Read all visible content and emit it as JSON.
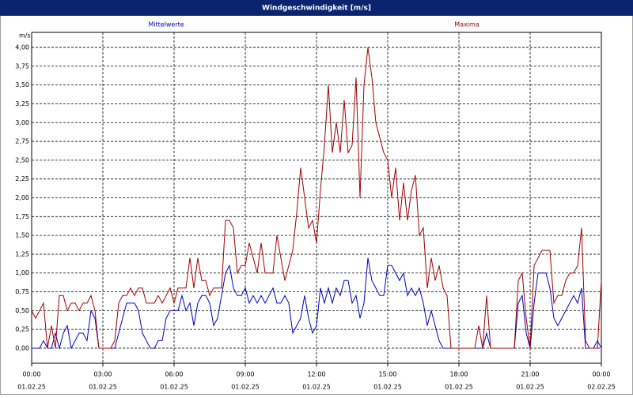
{
  "chart_data": {
    "type": "line",
    "title": "Windgeschwindigkeit [m/s]",
    "y_unit": "m/s",
    "x": [
      0,
      10,
      20,
      30,
      40,
      50,
      60,
      70,
      80,
      90,
      100,
      110,
      120,
      130,
      140,
      150,
      160,
      170,
      180,
      190,
      200,
      210,
      220,
      230,
      240,
      250,
      260,
      270,
      280,
      290,
      300,
      310,
      320,
      330,
      340,
      350,
      360,
      370,
      380,
      390,
      400,
      410,
      420,
      430,
      440,
      450,
      460,
      470,
      480,
      490,
      500,
      510,
      520,
      530,
      540,
      550,
      560,
      570,
      580,
      590,
      600,
      610,
      620,
      630,
      640,
      650,
      660,
      670,
      680,
      690,
      700,
      710,
      720,
      730,
      740,
      750,
      760,
      770,
      780,
      790,
      800,
      810,
      820,
      830,
      840,
      850,
      860,
      870,
      880,
      890,
      900,
      910,
      920,
      930,
      940,
      950,
      960,
      970,
      980,
      990,
      1000,
      1010,
      1020,
      1030,
      1040,
      1050,
      1060,
      1070,
      1080,
      1090,
      1100,
      1110,
      1120,
      1130,
      1140,
      1150,
      1160,
      1170,
      1180,
      1190,
      1200,
      1210,
      1220,
      1230,
      1240,
      1250,
      1260,
      1270,
      1280,
      1290,
      1300,
      1310,
      1320,
      1330,
      1340,
      1350,
      1360,
      1370,
      1380,
      1390,
      1400,
      1410,
      1420,
      1430,
      1440
    ],
    "series": [
      {
        "name": "Mittelwerte",
        "color": "#0000c0",
        "values": [
          0,
          0,
          0,
          0.1,
          0,
          0,
          0.2,
          0,
          0.2,
          0.3,
          0,
          0.1,
          0.2,
          0.2,
          0.1,
          0.5,
          0.4,
          0,
          0,
          0,
          0,
          0,
          0.2,
          0.4,
          0.6,
          0.6,
          0.6,
          0.5,
          0.2,
          0.1,
          0,
          0,
          0.1,
          0.1,
          0.4,
          0.5,
          0.5,
          0.5,
          0.7,
          0.5,
          0.6,
          0.3,
          0.6,
          0.7,
          0.7,
          0.6,
          0.3,
          0.4,
          0.7,
          1.0,
          1.1,
          0.8,
          0.7,
          0.7,
          0.8,
          0.6,
          0.7,
          0.6,
          0.7,
          0.6,
          0.7,
          0.8,
          0.6,
          0.6,
          0.7,
          0.6,
          0.2,
          0.3,
          0.4,
          0.7,
          0.4,
          0.2,
          0.3,
          0.8,
          0.6,
          0.8,
          0.6,
          0.8,
          0.7,
          0.9,
          0.9,
          0.6,
          0.7,
          0.4,
          0.6,
          1.2,
          0.9,
          0.8,
          0.7,
          0.7,
          1.1,
          1.1,
          1.0,
          0.9,
          1.0,
          0.7,
          0.8,
          0.7,
          0.8,
          0.6,
          0.3,
          0.5,
          0.3,
          0.1,
          0,
          0,
          0,
          0,
          0,
          0,
          0,
          0,
          0,
          0,
          0,
          0.2,
          0,
          0,
          0,
          0,
          0,
          0,
          0,
          0.6,
          0.7,
          0.2,
          0,
          0.6,
          1.0,
          1.0,
          1.0,
          0.8,
          0.4,
          0.3,
          0.4,
          0.5,
          0.6,
          0.7,
          0.6,
          0.8,
          0,
          0,
          0,
          0.1,
          0
        ]
      },
      {
        "name": "Maxima",
        "color": "#a00000",
        "values": [
          0.5,
          0.4,
          0.5,
          0.6,
          0,
          0.3,
          0,
          0.7,
          0.7,
          0.5,
          0.6,
          0.6,
          0.5,
          0.6,
          0.6,
          0.7,
          0.5,
          0,
          0,
          0,
          0,
          0.1,
          0.6,
          0.7,
          0.7,
          0.8,
          0.7,
          0.8,
          0.8,
          0.6,
          0.6,
          0.6,
          0.7,
          0.6,
          0.7,
          0.8,
          0.6,
          0.8,
          0.8,
          0.8,
          1.2,
          0.8,
          1.2,
          0.9,
          0.9,
          0.7,
          0.8,
          0.8,
          0.8,
          1.7,
          1.7,
          1.6,
          1.0,
          1.1,
          1.1,
          1.4,
          1.2,
          1.0,
          1.4,
          1.0,
          1.0,
          1.0,
          1.5,
          1.2,
          0.9,
          1.1,
          1.3,
          1.8,
          2.4,
          2.0,
          1.6,
          1.7,
          1.4,
          2.1,
          2.7,
          3.5,
          2.6,
          3.0,
          2.6,
          3.3,
          2.6,
          2.7,
          3.6,
          2.0,
          3.5,
          4.0,
          3.6,
          3.0,
          2.8,
          2.6,
          2.5,
          2.0,
          2.4,
          1.7,
          2.2,
          1.7,
          2.1,
          2.3,
          1.5,
          1.6,
          0.8,
          1.2,
          0.9,
          1.1,
          0.8,
          0.7,
          0,
          0,
          0,
          0,
          0,
          0,
          0,
          0.3,
          0,
          0.7,
          0,
          0,
          0,
          0,
          0,
          0,
          0,
          0.9,
          1.0,
          0.4,
          0,
          1.1,
          1.2,
          1.3,
          1.3,
          1.3,
          0.6,
          0.7,
          0.7,
          0.9,
          1.0,
          1.0,
          1.1,
          1.6,
          0.1,
          0,
          0,
          0,
          0.9
        ]
      }
    ],
    "xlim": [
      0,
      1440
    ],
    "xticks": [
      {
        "value": 0,
        "label": "00:00"
      },
      {
        "value": 180,
        "label": "03:00"
      },
      {
        "value": 360,
        "label": "06:00"
      },
      {
        "value": 540,
        "label": "09:00"
      },
      {
        "value": 720,
        "label": "12:00"
      },
      {
        "value": 900,
        "label": "15:00"
      },
      {
        "value": 1080,
        "label": "18:00"
      },
      {
        "value": 1260,
        "label": "21:00"
      },
      {
        "value": 1440,
        "label": "00:00"
      }
    ],
    "xtick_dates": [
      "01.02.25",
      "01.02.25",
      "01.02.25",
      "01.02.25",
      "01.02.25",
      "01.02.25",
      "01.02.25",
      "01.02.25",
      "02.02.25"
    ],
    "ylim": [
      -0.2,
      4.2
    ],
    "yticks": [
      {
        "value": 0,
        "label": "0,00"
      },
      {
        "value": 0.25,
        "label": "0,25"
      },
      {
        "value": 0.5,
        "label": "0,50"
      },
      {
        "value": 0.75,
        "label": "0,75"
      },
      {
        "value": 1,
        "label": "1,00"
      },
      {
        "value": 1.25,
        "label": "1,25"
      },
      {
        "value": 1.5,
        "label": "1,50"
      },
      {
        "value": 1.75,
        "label": "1,75"
      },
      {
        "value": 2,
        "label": "2,00"
      },
      {
        "value": 2.25,
        "label": "2,25"
      },
      {
        "value": 2.5,
        "label": "2,50"
      },
      {
        "value": 2.75,
        "label": "2,75"
      },
      {
        "value": 3,
        "label": "3,00"
      },
      {
        "value": 3.25,
        "label": "3,25"
      },
      {
        "value": 3.5,
        "label": "3,50"
      },
      {
        "value": 3.75,
        "label": "3,75"
      },
      {
        "value": 4,
        "label": "4,00"
      }
    ],
    "grid": true
  }
}
